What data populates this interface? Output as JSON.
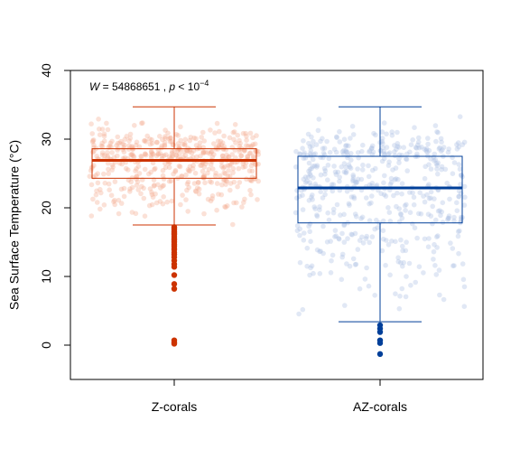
{
  "chart_data": {
    "type": "box",
    "ylabel": "Sea Surface Temperature (°C)",
    "ylim": [
      -5,
      40
    ],
    "yticks": [
      0,
      10,
      20,
      30,
      40
    ],
    "categories": [
      "Z-corals",
      "AZ-corals"
    ],
    "annotation": {
      "w_label": "W",
      "w_eq": " = 54868651 ,  ",
      "p_label": "p",
      "p_lt": " < 10",
      "p_exp": "−4"
    },
    "groups": [
      {
        "name": "Z-corals",
        "color": "#cc3300",
        "jitter_color": "#f4a88c",
        "whisker_low": 17.5,
        "q1": 24.3,
        "median": 26.9,
        "q3": 28.6,
        "whisker_high": 34.7,
        "outliers": [
          17.2,
          17.0,
          16.8,
          16.5,
          16.3,
          16.1,
          15.8,
          15.5,
          15.3,
          15.0,
          14.7,
          14.4,
          14.1,
          13.9,
          13.5,
          13.2,
          12.8,
          12.3,
          11.8,
          11.4,
          10.2,
          8.9,
          8.2,
          0.7,
          0.4,
          0.2
        ]
      },
      {
        "name": "AZ-corals",
        "color": "#003f99",
        "jitter_color": "#a9bde3",
        "whisker_low": 3.4,
        "q1": 17.8,
        "median": 22.9,
        "q3": 27.5,
        "whisker_high": 34.7,
        "outliers": [
          2.9,
          2.4,
          1.9,
          0.7,
          0.3,
          -1.3
        ]
      }
    ]
  }
}
